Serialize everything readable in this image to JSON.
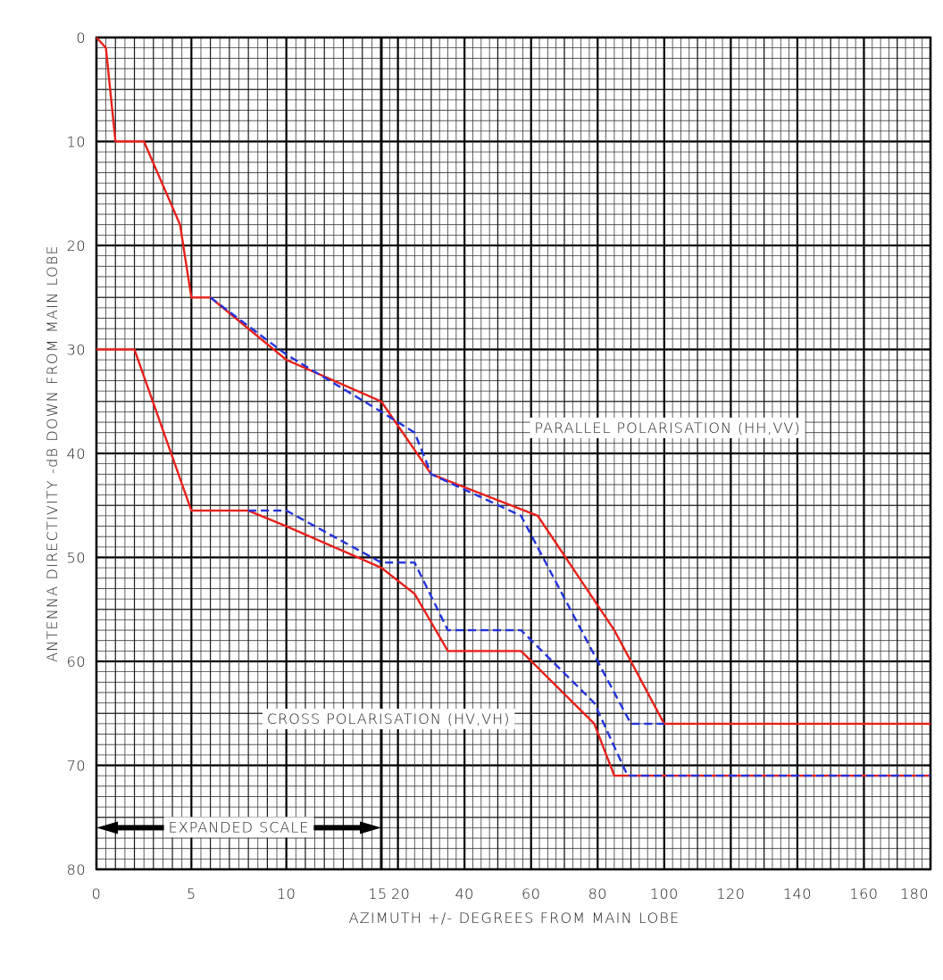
{
  "chart_data": {
    "type": "line",
    "xlabel": "AZIMUTH +/- DEGREES FROM MAIN LOBE",
    "ylabel": "ANTENNA DIRECTIVITY -dB DOWN FROM MAIN LOBE",
    "x_scale": "piecewise linear: 0-15 expanded, 15-180 compressed",
    "xlim": [
      0,
      180
    ],
    "ylim": [
      0,
      80
    ],
    "y_inverted": true,
    "grid": true,
    "x_ticks": [
      {
        "value": 0,
        "label": "0"
      },
      {
        "value": 5,
        "label": "5"
      },
      {
        "value": 10,
        "label": "10"
      },
      {
        "value": 15,
        "label": "15"
      },
      {
        "value": 20,
        "label": "20"
      },
      {
        "value": 40,
        "label": "40"
      },
      {
        "value": 60,
        "label": "60"
      },
      {
        "value": 80,
        "label": "80"
      },
      {
        "value": 100,
        "label": "100"
      },
      {
        "value": 120,
        "label": "120"
      },
      {
        "value": 140,
        "label": "140"
      },
      {
        "value": 160,
        "label": "160"
      },
      {
        "value": 180,
        "label": "180"
      }
    ],
    "y_ticks": [
      {
        "value": 0,
        "label": "0"
      },
      {
        "value": 10,
        "label": "10"
      },
      {
        "value": 20,
        "label": "20"
      },
      {
        "value": 30,
        "label": "30"
      },
      {
        "value": 40,
        "label": "40"
      },
      {
        "value": 50,
        "label": "50"
      },
      {
        "value": 60,
        "label": "60"
      },
      {
        "value": 70,
        "label": "70"
      },
      {
        "value": 80,
        "label": "80"
      }
    ],
    "series": [
      {
        "name": "",
        "color": "#e8201a",
        "dash": "solid",
        "points": [
          [
            0,
            0
          ],
          [
            0.5,
            1
          ],
          [
            1,
            10
          ],
          [
            2.5,
            10
          ],
          [
            4.4,
            18
          ],
          [
            5,
            25
          ],
          [
            6,
            25
          ],
          [
            10,
            31
          ],
          [
            15,
            35
          ],
          [
            30,
            42
          ],
          [
            62,
            46
          ],
          [
            85,
            57
          ],
          [
            100,
            66
          ],
          [
            180,
            66
          ]
        ]
      },
      {
        "name": "",
        "color": "#2233dd",
        "dash": "dashed",
        "points": [
          [
            6,
            25
          ],
          [
            10,
            30.5
          ],
          [
            15,
            36
          ],
          [
            25,
            38
          ],
          [
            30,
            42
          ],
          [
            57,
            46
          ],
          [
            80,
            60
          ],
          [
            90,
            66
          ],
          [
            100,
            66
          ]
        ]
      },
      {
        "name": "",
        "color": "#e8201a",
        "dash": "solid",
        "points": [
          [
            0,
            30
          ],
          [
            2,
            30
          ],
          [
            5,
            45.5
          ],
          [
            8,
            45.5
          ],
          [
            10,
            47
          ],
          [
            15,
            51
          ],
          [
            25,
            53.5
          ],
          [
            35,
            59
          ],
          [
            57,
            59
          ],
          [
            79,
            66
          ],
          [
            85,
            71
          ],
          [
            180,
            71
          ]
        ]
      },
      {
        "name": "",
        "color": "#2233dd",
        "dash": "dashed",
        "points": [
          [
            8,
            45.5
          ],
          [
            10,
            45.5
          ],
          [
            15,
            50.5
          ],
          [
            25,
            50.5
          ],
          [
            35,
            57
          ],
          [
            57,
            57
          ],
          [
            79,
            64
          ],
          [
            89,
            71
          ],
          [
            180,
            71
          ]
        ]
      }
    ],
    "annotations": [
      {
        "text": "PARALLEL POLARISATION (HH,VV)",
        "x": 90,
        "y": 37.5
      },
      {
        "text": "CROSS POLARISATION (HV,VH)",
        "x": 15,
        "y": 65.5
      },
      {
        "text": "EXPANDED SCALE",
        "x": 7.5,
        "y": 76,
        "arrow_from": 0,
        "arrow_to": 15
      }
    ]
  }
}
